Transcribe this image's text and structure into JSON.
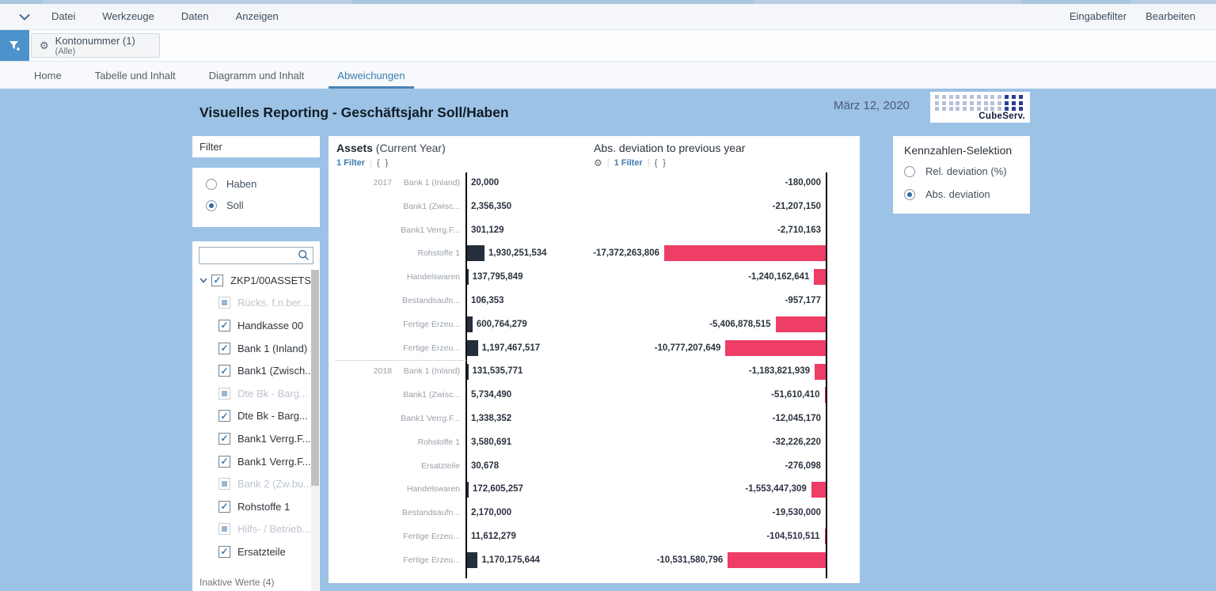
{
  "menu_bar": {
    "items": [
      "Datei",
      "Werkzeuge",
      "Daten",
      "Anzeigen"
    ],
    "right_items": [
      "Eingabefilter",
      "Bearbeiten"
    ]
  },
  "filter_bar": {
    "chip": {
      "title": "Kontonummer (1)",
      "subtitle": "(Alle)"
    }
  },
  "tabs": {
    "items": [
      {
        "label": "Home",
        "active": false
      },
      {
        "label": "Tabelle und Inhalt",
        "active": false
      },
      {
        "label": "Diagramm und Inhalt",
        "active": false
      },
      {
        "label": "Abweichungen",
        "active": true
      }
    ]
  },
  "page": {
    "title": "Visuelles Reporting - Geschäftsjahr Soll/Haben",
    "date": "März 12, 2020",
    "logo_text": "CubeServ.",
    "logo": {
      "rows": 3,
      "cols": 13,
      "dark_cols": 3,
      "light_color": "#b6c1d9",
      "dark_color": "#2c3f92"
    },
    "background_color": "#9cc2e5"
  },
  "filter_panel": {
    "title": "Filter",
    "radios": [
      {
        "label": "Haben",
        "selected": false
      },
      {
        "label": "Soll",
        "selected": true
      }
    ],
    "tree_root": "ZKP1/00ASSETS",
    "items": [
      {
        "label": "Rücks. f.n.ber...",
        "state": "inactive"
      },
      {
        "label": "Handkasse 00",
        "state": "checked"
      },
      {
        "label": "Bank 1 (Inland)",
        "state": "checked"
      },
      {
        "label": "Bank1 (Zwisch...",
        "state": "checked"
      },
      {
        "label": "Dte Bk - Barg...",
        "state": "inactive"
      },
      {
        "label": "Dte Bk - Barg...",
        "state": "checked"
      },
      {
        "label": "Bank1 Verrg.F...",
        "state": "checked"
      },
      {
        "label": "Bank1 Verrg.F...",
        "state": "checked"
      },
      {
        "label": "Bank 2 (Zw.bu...",
        "state": "inactive"
      },
      {
        "label": "Rohstoffe 1",
        "state": "checked"
      },
      {
        "label": "Hilfs- / Betrieb...",
        "state": "inactive"
      },
      {
        "label": "Ersatzteile",
        "state": "checked"
      }
    ],
    "footer": "Inaktive Werte (4)"
  },
  "kennzahlen_panel": {
    "title": "Kennzahlen-Selektion",
    "radios": [
      {
        "label": "Rel. deviation (%)",
        "selected": false
      },
      {
        "label": "Abs. deviation",
        "selected": true
      }
    ]
  },
  "chart_data": {
    "type": "bar",
    "orientation": "horizontal",
    "left_panel": {
      "title": "Assets",
      "title_suffix": " (Current Year)",
      "filter_label": "1 Filter",
      "braces": "{ }"
    },
    "right_panel": {
      "title": "Abs. deviation to previous year",
      "filter_label": "1 Filter",
      "braces": "{ }",
      "gear_icon": "⚙"
    },
    "colors": {
      "current_bar": "#252e3d",
      "deviation_bar": "#ee3d67",
      "accent": "#3e7cb0"
    },
    "rows": [
      {
        "year": "2017",
        "label": "Bank 1 (Inland)",
        "current": "20,000",
        "deviation": "-180,000"
      },
      {
        "year": "",
        "label": "Bank1 (Zwisc...",
        "current": "2,356,350",
        "deviation": "-21,207,150"
      },
      {
        "year": "",
        "label": "Bank1 Verrg.F...",
        "current": "301,129",
        "deviation": "-2,710,163"
      },
      {
        "year": "",
        "label": "Rohstoffe 1",
        "current": "1,930,251,534",
        "deviation": "-17,372,263,806"
      },
      {
        "year": "",
        "label": "Handelswaren",
        "current": "137,795,849",
        "deviation": "-1,240,162,641"
      },
      {
        "year": "",
        "label": "Bestandsaufn...",
        "current": "106,353",
        "deviation": "-957,177"
      },
      {
        "year": "",
        "label": "Fertige Erzeu...",
        "current": "600,764,279",
        "deviation": "-5,406,878,515"
      },
      {
        "year": "",
        "label": "Fertige Erzeu...",
        "current": "1,197,467,517",
        "deviation": "-10,777,207,649",
        "group_end": true
      },
      {
        "year": "2018",
        "label": "Bank 1 (Inland)",
        "current": "131,535,771",
        "deviation": "-1,183,821,939"
      },
      {
        "year": "",
        "label": "Bank1 (Zwisc...",
        "current": "5,734,490",
        "deviation": "-51,610,410"
      },
      {
        "year": "",
        "label": "Bank1 Verrg.F...",
        "current": "1,338,352",
        "deviation": "-12,045,170"
      },
      {
        "year": "",
        "label": "Rohstoffe 1",
        "current": "3,580,691",
        "deviation": "-32,226,220"
      },
      {
        "year": "",
        "label": "Ersatzteile",
        "current": "30,678",
        "deviation": "-276,098"
      },
      {
        "year": "",
        "label": "Handelswaren",
        "current": "172,605,257",
        "deviation": "-1,553,447,309"
      },
      {
        "year": "",
        "label": "Bestandsaufn...",
        "current": "2,170,000",
        "deviation": "-19,530,000"
      },
      {
        "year": "",
        "label": "Fertige Erzeu...",
        "current": "11,612,279",
        "deviation": "-104,510,511"
      },
      {
        "year": "",
        "label": "Fertige Erzeu...",
        "current": "1,170,175,644",
        "deviation": "-10,531,580,796"
      }
    ],
    "axis_note": "both charts share a common horizontal scale; deviation bars grow leftward from right axis"
  }
}
